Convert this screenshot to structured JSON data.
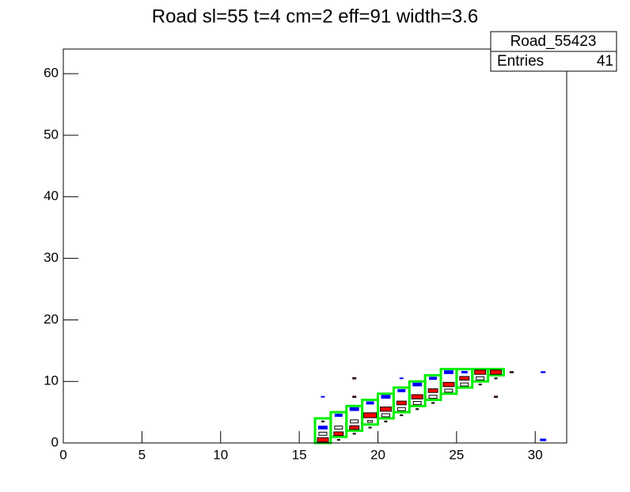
{
  "chart_data": {
    "type": "box2d",
    "title": "Road sl=55 t=4 cm=2 eff=91 width=3.6",
    "stats": {
      "name": "Road_55423",
      "label": "Entries",
      "value": 41
    },
    "xlim": [
      0,
      32
    ],
    "ylim": [
      0,
      64
    ],
    "xticks": [
      0,
      5,
      10,
      15,
      20,
      25,
      30
    ],
    "yticks": [
      0,
      10,
      20,
      30,
      40,
      50,
      60
    ],
    "road": {
      "color": "#00ee00",
      "x": [
        16,
        17,
        18,
        19,
        20,
        21,
        22,
        23,
        24,
        25,
        26,
        27
      ],
      "low": [
        0,
        1,
        2,
        3,
        4,
        5,
        6,
        7,
        8,
        9,
        10,
        11
      ],
      "high": [
        4,
        5,
        6,
        7,
        8,
        9,
        10,
        11,
        12,
        12,
        12,
        12
      ]
    },
    "series": [
      {
        "color": "#ff0000",
        "stroke": "#000000",
        "x": [
          16,
          17,
          18,
          19,
          20,
          21,
          22,
          23,
          24,
          25,
          26,
          27,
          18,
          18,
          27,
          28
        ],
        "y": [
          0,
          1,
          2,
          4,
          5,
          6,
          7,
          8,
          9,
          10,
          11,
          11,
          10,
          7,
          7,
          11
        ],
        "size": [
          0.7,
          0.6,
          0.6,
          0.8,
          0.7,
          0.6,
          0.7,
          0.6,
          0.7,
          0.6,
          0.7,
          0.7,
          0.2,
          0.2,
          0.2,
          0.2
        ]
      },
      {
        "color": "#0000ff",
        "stroke": "none",
        "x": [
          16,
          17,
          18,
          19,
          20,
          21,
          22,
          23,
          24,
          25,
          16,
          21,
          30,
          30
        ],
        "y": [
          2,
          4,
          5,
          6,
          7,
          8,
          9,
          10,
          11,
          11,
          7,
          10,
          11,
          0
        ],
        "size": [
          0.6,
          0.5,
          0.6,
          0.5,
          0.6,
          0.5,
          0.6,
          0.5,
          0.6,
          0.4,
          0.25,
          0.25,
          0.3,
          0.4
        ]
      },
      {
        "color": "#ffffff",
        "stroke": "#000000",
        "x": [
          16,
          17,
          18,
          19,
          20,
          21,
          22,
          23,
          24,
          25,
          26,
          16,
          17,
          18,
          19,
          20,
          21,
          22,
          23,
          26,
          27
        ],
        "y": [
          1,
          2,
          3,
          3,
          4,
          5,
          6,
          7,
          8,
          9,
          10,
          3,
          0,
          1,
          2,
          3,
          4,
          5,
          6,
          9,
          10
        ],
        "size": [
          0.5,
          0.5,
          0.5,
          0.3,
          0.5,
          0.5,
          0.5,
          0.5,
          0.5,
          0.5,
          0.5,
          0.15,
          0.15,
          0.15,
          0.15,
          0.15,
          0.15,
          0.15,
          0.15,
          0.15,
          0.15
        ]
      }
    ]
  }
}
